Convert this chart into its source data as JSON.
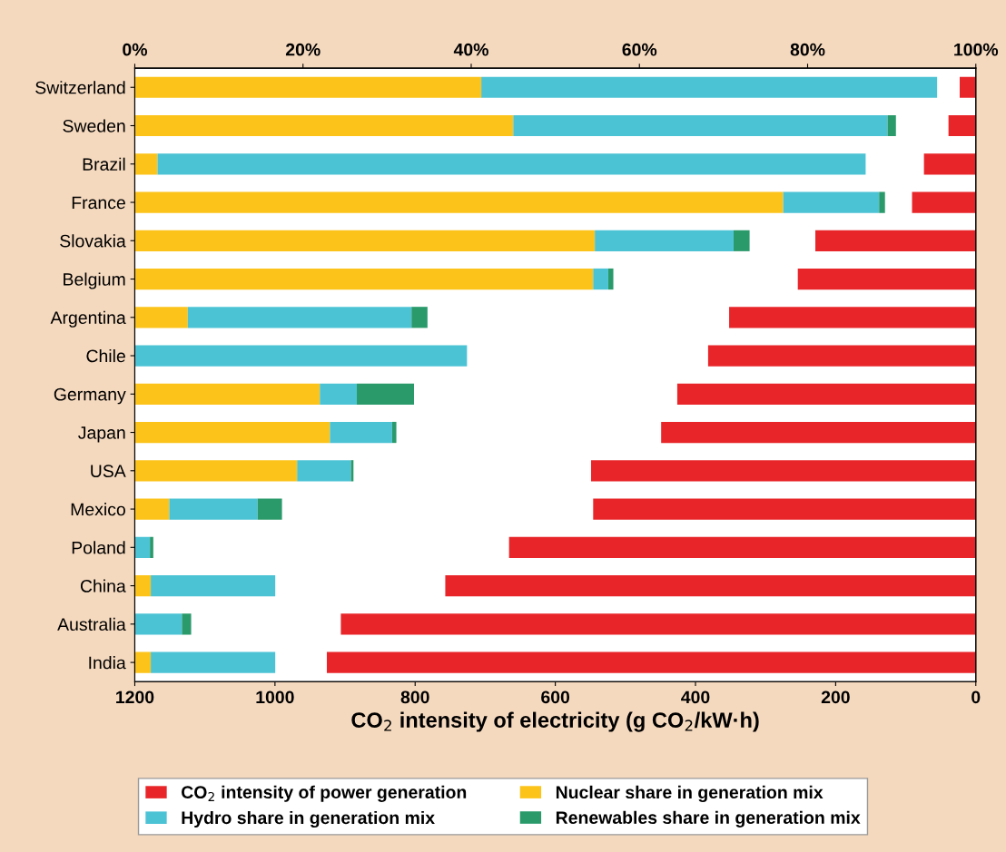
{
  "chart_data": [
    {
      "type": "bar",
      "orientation": "horizontal",
      "categories": [
        "Switzerland",
        "Sweden",
        "Brazil",
        "France",
        "Slovakia",
        "Belgium",
        "Argentina",
        "Chile",
        "Germany",
        "Japan",
        "USA",
        "Mexico",
        "Poland",
        "China",
        "Australia",
        "India"
      ],
      "series": [
        {
          "name": "CO$_{2}$ intensity of power generation",
          "color": "#e8262a",
          "values": [
            23,
            39,
            74,
            91,
            229,
            254,
            352,
            382,
            426,
            449,
            549,
            546,
            666,
            757,
            906,
            926
          ]
        }
      ],
      "xlabel": "CO$_{2}$ intensity of electricity (g CO$_{2}$/kW·h)",
      "xlim": [
        1200,
        0
      ],
      "xticks": [
        1200,
        1000,
        800,
        600,
        400,
        200,
        0
      ],
      "legend": "bottom",
      "grid": false
    },
    {
      "type": "bar",
      "orientation": "horizontal",
      "stacked": true,
      "tick_labels": "x",
      "categories": [
        null,
        null,
        null,
        null,
        null,
        null,
        null,
        null,
        null,
        null,
        null,
        null,
        null,
        null,
        null,
        null
      ],
      "series": [
        {
          "name": "Nuclear share in generation mix",
          "color": "#fcc31a",
          "values": [
            41.2,
            45.0,
            2.7,
            77.1,
            54.7,
            54.5,
            6.3,
            0,
            22.0,
            23.2,
            19.3,
            4.1,
            0,
            1.9,
            0,
            1.9
          ]
        },
        {
          "name": "Hydro share in generation mix",
          "color": "#4cc3d5",
          "values": [
            54.2,
            44.5,
            84.2,
            11.4,
            16.5,
            1.8,
            26.6,
            39.5,
            4.4,
            7.4,
            6.4,
            10.5,
            1.8,
            14.8,
            5.6,
            14.8
          ]
        },
        {
          "name": "Renewables share in generation mix",
          "color": "#2a9a6b",
          "values": [
            0,
            1.0,
            0,
            0.7,
            1.9,
            0.6,
            1.9,
            0,
            6.8,
            0.5,
            0.3,
            2.9,
            0.4,
            0,
            1.1,
            0
          ]
        }
      ],
      "xlim": [
        0,
        100
      ],
      "xticks": [
        {
          "value": 0,
          "label": "0%"
        },
        {
          "value": 20,
          "label": "20%"
        },
        {
          "value": 40,
          "label": "40%"
        },
        {
          "value": 60,
          "label": "60%"
        },
        {
          "value": 80,
          "label": "80%"
        },
        {
          "value": 100,
          "label": "100%"
        }
      ],
      "legend": "bottom",
      "grid": false
    }
  ]
}
